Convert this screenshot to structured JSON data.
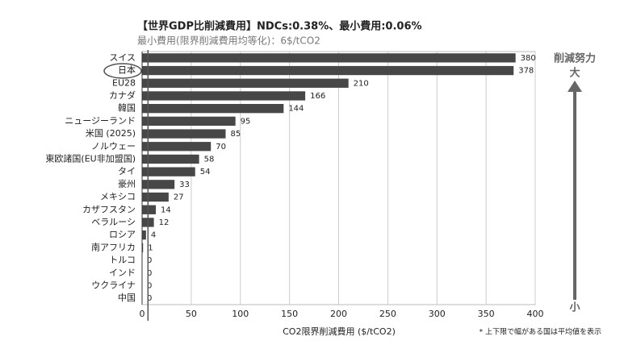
{
  "chart_data": {
    "type": "bar",
    "orientation": "horizontal",
    "title": "【世界GDP比削減費用】NDCs:0.38%、最小費用:0.06%",
    "subtitle": "最小費用(限界削減費用均等化)：6$/tCO2",
    "x_label": "CO2限界削減費用 ($/tCO2)",
    "categories": [
      "スイス",
      "日本",
      "EU28",
      "カナダ",
      "韓国",
      "ニュージーランド",
      "米国 (2025)",
      "ノルウェー",
      "東欧諸国(EU非加盟国)",
      "タイ",
      "豪州",
      "メキシコ",
      "カザフスタン",
      "ベラルーシ",
      "ロシア",
      "南アフリカ",
      "トルコ",
      "インド",
      "ウクライナ",
      "中国"
    ],
    "values": [
      380,
      378,
      210,
      166,
      144,
      95,
      85,
      70,
      58,
      54,
      33,
      27,
      14,
      12,
      4,
      1,
      0,
      0,
      0,
      0
    ],
    "color": "#474747",
    "xlim": [
      0,
      400
    ],
    "xticks": [
      0,
      50,
      100,
      150,
      200,
      250,
      300,
      350,
      400
    ],
    "grid": true,
    "reference_x": 6,
    "annotations": {
      "effort": "削減努力",
      "high": "大",
      "low": "小"
    },
    "footnote": "* 上下限で幅がある国は平均値を表示"
  }
}
